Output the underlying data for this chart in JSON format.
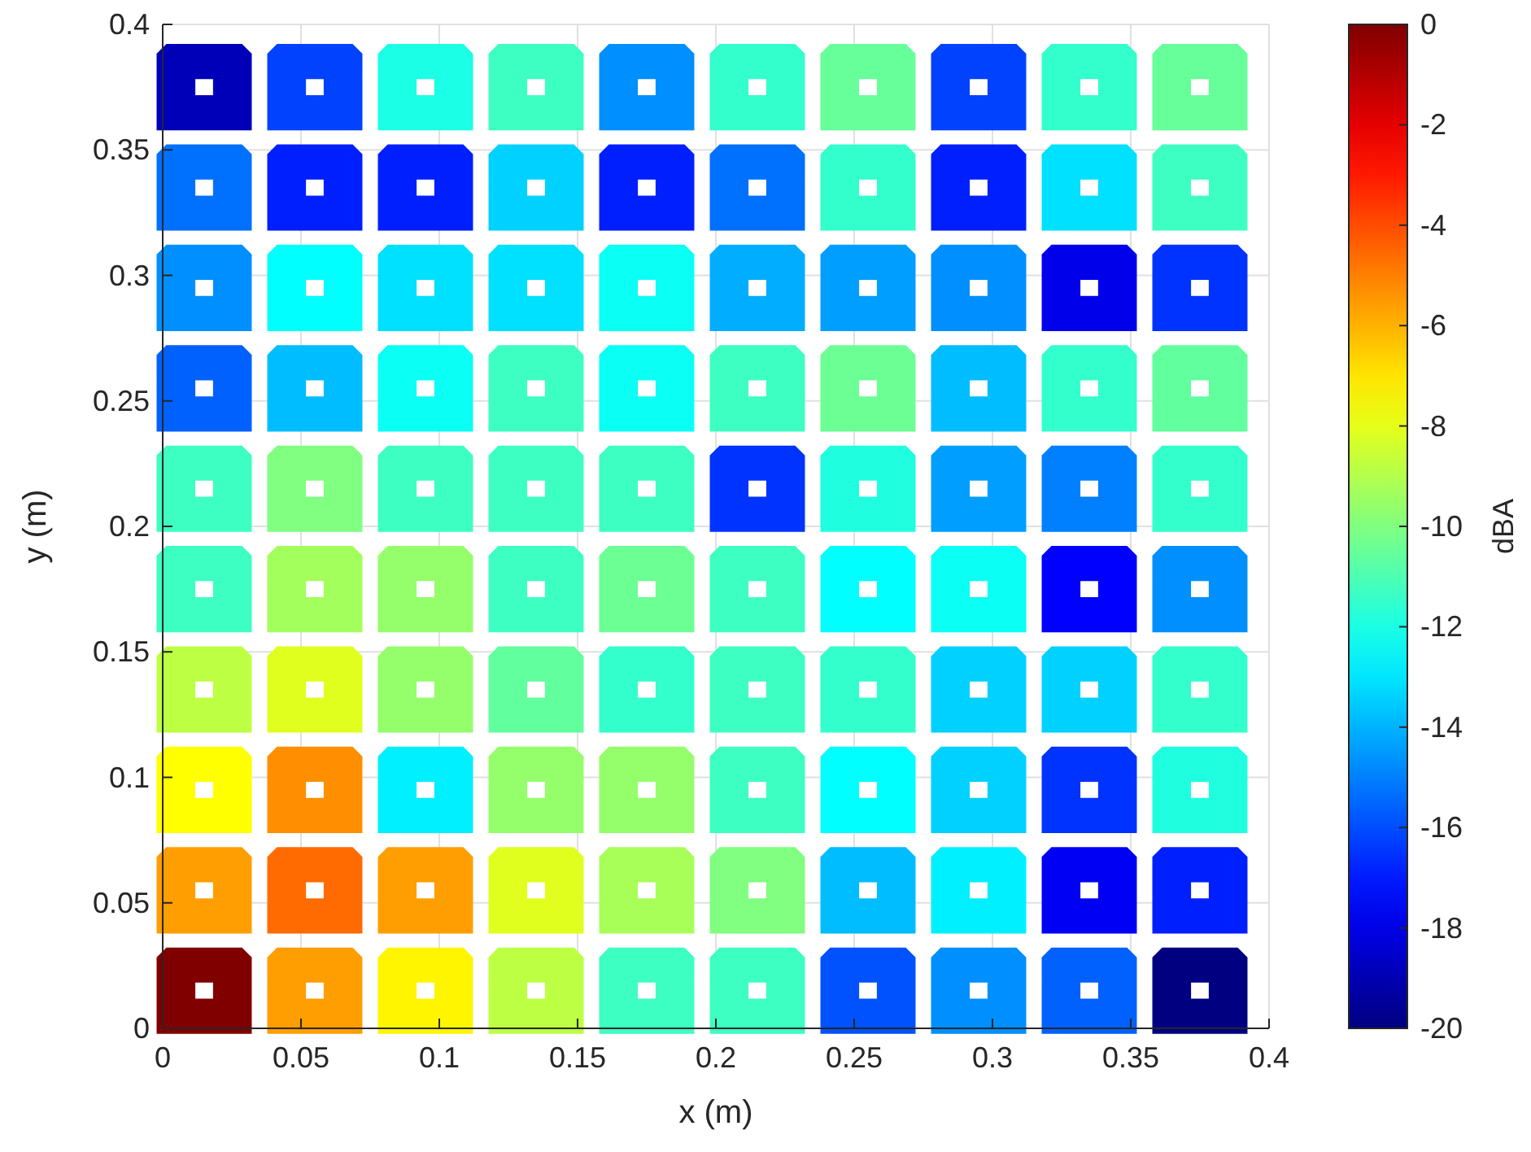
{
  "chart_data": {
    "type": "heatmap",
    "xlabel": "x (m)",
    "ylabel": "y (m)",
    "clabel": "dBA",
    "x": [
      0.015,
      0.055,
      0.095,
      0.135,
      0.175,
      0.215,
      0.255,
      0.295,
      0.335,
      0.375
    ],
    "y": [
      0.375,
      0.335,
      0.295,
      0.255,
      0.215,
      0.175,
      0.135,
      0.095,
      0.055,
      0.015
    ],
    "cells": [
      [
        -18.9,
        -16.2,
        -12,
        -11.3,
        -14.7,
        -11.5,
        -10.5,
        -16.2,
        -11.5,
        -10.5
      ],
      [
        -15.3,
        -16.9,
        -16.9,
        -13.4,
        -16.9,
        -15.3,
        -11.5,
        -16.9,
        -13.1,
        -11.3
      ],
      [
        -14.7,
        -12.5,
        -13.1,
        -13.1,
        -12.3,
        -14.1,
        -14.4,
        -14.7,
        -17.9,
        -16.5
      ],
      [
        -15.6,
        -13.8,
        -12.3,
        -11.3,
        -12.3,
        -11.3,
        -10.4,
        -13.8,
        -11.5,
        -10.6
      ],
      [
        -11.3,
        -10,
        -11.3,
        -11.3,
        -11.3,
        -16.5,
        -11.9,
        -14.4,
        -15,
        -11.5
      ],
      [
        -11.3,
        -9.3,
        -9.6,
        -11.3,
        -10.4,
        -11.3,
        -12.5,
        -12.3,
        -17.5,
        -14.7
      ],
      [
        -8.8,
        -8.1,
        -9.6,
        -10.6,
        -11.5,
        -11.3,
        -11.5,
        -13.4,
        -13.4,
        -11.5
      ],
      [
        -7.5,
        -5.3,
        -12.8,
        -9.6,
        -9.6,
        -11.3,
        -12.5,
        -13.4,
        -16.5,
        -11.9
      ],
      [
        -5.6,
        -4.6,
        -5.6,
        -8.1,
        -9.2,
        -10,
        -13.8,
        -12.8,
        -17.7,
        -16.9
      ],
      [
        0,
        -5.6,
        -7.3,
        -8.8,
        -11.3,
        -11.3,
        -15.9,
        -14.7,
        -15.6,
        -20
      ]
    ],
    "xlim": [
      0,
      0.4
    ],
    "ylim": [
      0,
      0.4
    ],
    "xticks": [
      0,
      0.05,
      0.1,
      0.15,
      0.2,
      0.25,
      0.3,
      0.35,
      0.4
    ],
    "yticks": [
      0,
      0.05,
      0.1,
      0.15,
      0.2,
      0.25,
      0.3,
      0.35,
      0.4
    ],
    "clim": [
      -20,
      0
    ],
    "cticks": [
      -20,
      -18,
      -16,
      -14,
      -12,
      -10,
      -8,
      -6,
      -4,
      -2,
      0
    ],
    "grid": true
  }
}
